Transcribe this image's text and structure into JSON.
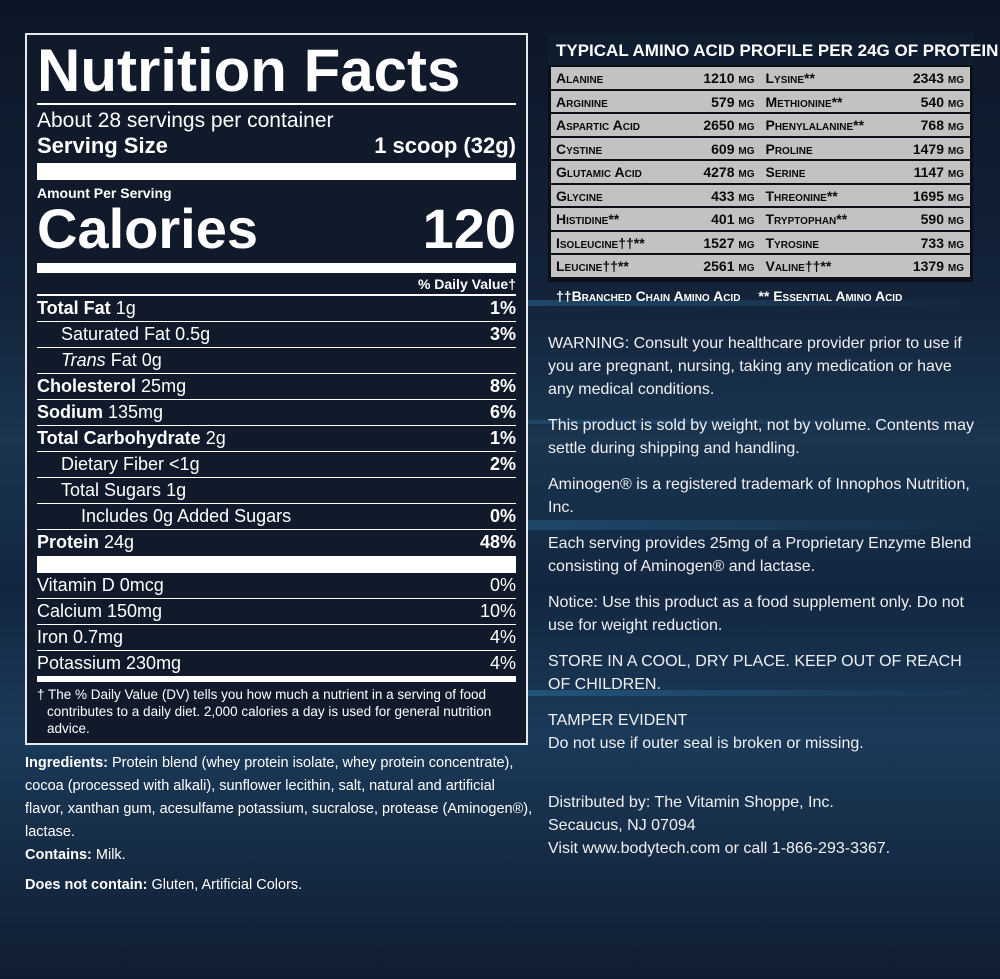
{
  "nutrition": {
    "title": "Nutrition Facts",
    "servings": "About 28 servings per container",
    "serving_size_label": "Serving Size",
    "serving_size_value": "1 scoop (32g)",
    "amount_per_serving": "Amount Per Serving",
    "calories_label": "Calories",
    "calories_value": "120",
    "daily_value_header": "% Daily Value†",
    "nutrients": [
      {
        "name": "Total Fat",
        "amount": "1g",
        "pct": "1%"
      },
      {
        "name": "Saturated Fat",
        "amount": "0.5g",
        "pct": "3%"
      },
      {
        "name": "Trans",
        "amount": "Fat 0g",
        "pct": ""
      },
      {
        "name": "Cholesterol",
        "amount": "25mg",
        "pct": "8%"
      },
      {
        "name": "Sodium",
        "amount": "135mg",
        "pct": "6%"
      },
      {
        "name": "Total Carbohydrate",
        "amount": "2g",
        "pct": "1%"
      },
      {
        "name": "Dietary Fiber",
        "amount": "<1g",
        "pct": "2%"
      },
      {
        "name": "Total Sugars",
        "amount": "1g",
        "pct": ""
      },
      {
        "name": "Includes 0g Added Sugars",
        "amount": "",
        "pct": "0%"
      },
      {
        "name": "Protein",
        "amount": "24g",
        "pct": "48%"
      }
    ],
    "vitamins": [
      {
        "name": "Vitamin D 0mcg",
        "pct": "0%"
      },
      {
        "name": "Calcium 150mg",
        "pct": "10%"
      },
      {
        "name": "Iron 0.7mg",
        "pct": "4%"
      },
      {
        "name": "Potassium 230mg",
        "pct": "4%"
      }
    ],
    "footnote": "† The % Daily Value (DV) tells you how much a nutrient in a serving of food contributes to a daily diet. 2,000 calories a day is used for general nutrition advice."
  },
  "ingredients": {
    "label": "Ingredients:",
    "text": "Protein blend (whey protein isolate, whey protein concentrate), cocoa (processed with alkali), sunflower lecithin, salt, natural and artificial flavor, xanthan gum, acesulfame potassium, sucralose, protease (Aminogen®), lactase.",
    "contains_label": "Contains:",
    "contains": "Milk.",
    "not_contain_label": "Does not contain:",
    "not_contain": "Gluten, Artificial Colors."
  },
  "amino": {
    "title": "TYPICAL AMINO ACID PROFILE PER 24G OF PROTEIN",
    "rows": [
      [
        {
          "name": "Alanine",
          "value": "1210 mg"
        },
        {
          "name": "Lysine**",
          "value": "2343 mg"
        }
      ],
      [
        {
          "name": "Arginine",
          "value": "579 mg"
        },
        {
          "name": "Methionine**",
          "value": "540 mg"
        }
      ],
      [
        {
          "name": "Aspartic Acid",
          "value": "2650 mg"
        },
        {
          "name": "Phenylalanine**",
          "value": "768 mg"
        }
      ],
      [
        {
          "name": "Cystine",
          "value": "609 mg"
        },
        {
          "name": "Proline",
          "value": "1479 mg"
        }
      ],
      [
        {
          "name": "Glutamic Acid",
          "value": "4278 mg"
        },
        {
          "name": "Serine",
          "value": "1147 mg"
        }
      ],
      [
        {
          "name": "Glycine",
          "value": "433 mg"
        },
        {
          "name": "Threonine**",
          "value": "1695 mg"
        }
      ],
      [
        {
          "name": "Histidine**",
          "value": "401 mg"
        },
        {
          "name": "Tryptophan**",
          "value": "590 mg"
        }
      ],
      [
        {
          "name": "Isoleucine††**",
          "value": "1527 mg"
        },
        {
          "name": "Tyrosine",
          "value": "733 mg"
        }
      ],
      [
        {
          "name": "Leucine††**",
          "value": "2561 mg"
        },
        {
          "name": "Valine††**",
          "value": "1379 mg"
        }
      ]
    ],
    "legend_bcaa": "††Branched Chain Amino Acid",
    "legend_essential": "** Essential Amino Acid"
  },
  "notices": [
    "WARNING: Consult your healthcare provider prior to use if you are pregnant, nursing, taking any medication or have any medical conditions.",
    "This product is sold by weight, not by volume. Contents may settle during shipping and handling.",
    "Aminogen® is a registered trademark of Innophos Nutrition, Inc.",
    "Each serving provides 25mg of a Proprietary Enzyme Blend consisting of Aminogen® and lactase.",
    "Notice: Use this product as a food supplement only. Do not use for weight reduction.",
    "STORE IN A COOL, DRY PLACE. KEEP OUT OF REACH OF CHILDREN.",
    "TAMPER EVIDENT",
    "Do not use if outer seal is broken or missing."
  ],
  "distributor": [
    "Distributed by: The Vitamin Shoppe, Inc.",
    "Secaucus, NJ 07094",
    "Visit www.bodytech.com or call 1-866-293-3367."
  ]
}
